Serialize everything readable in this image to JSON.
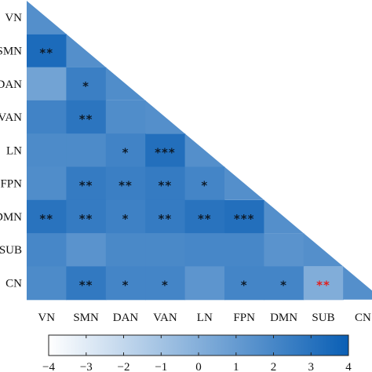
{
  "chart_data": {
    "type": "heatmap",
    "title": "",
    "xlabel": "",
    "ylabel": "",
    "layout": "lower-triangle",
    "labels": [
      "VN",
      "SMN",
      "DAN",
      "VAN",
      "LN",
      "FPN",
      "DMN",
      "SUB",
      "CN"
    ],
    "x_tick_labels": [
      "VN",
      "SMN",
      "DAN",
      "VAN",
      "LN",
      "FPN",
      "DMN",
      "SUB",
      "CN"
    ],
    "y_tick_labels": [
      "VN",
      "SMN",
      "DAN",
      "VAN",
      "LN",
      "FPN",
      "DMN",
      "SUB",
      "CN"
    ],
    "colorbar": {
      "range": [
        -4,
        4
      ],
      "ticks": [
        "−4",
        "−3",
        "−2",
        "−1",
        "0",
        "1",
        "2",
        "3",
        "4"
      ],
      "tick_values": [
        -4,
        -3,
        -2,
        -1,
        0,
        1,
        2,
        3,
        4
      ],
      "orientation": "horizontal",
      "placement": "bottom",
      "color_low": "#ffffff",
      "color_high": "#0a5fb5"
    },
    "cells": [
      {
        "row": 0,
        "col": 0,
        "value": 1.6,
        "sig": ""
      },
      {
        "row": 1,
        "col": 0,
        "value": 3.4,
        "sig": "**"
      },
      {
        "row": 1,
        "col": 1,
        "value": 1.6,
        "sig": ""
      },
      {
        "row": 2,
        "col": 0,
        "value": 0.6,
        "sig": ""
      },
      {
        "row": 2,
        "col": 1,
        "value": 2.4,
        "sig": "*"
      },
      {
        "row": 2,
        "col": 2,
        "value": 1.7,
        "sig": ""
      },
      {
        "row": 3,
        "col": 0,
        "value": 2.2,
        "sig": ""
      },
      {
        "row": 3,
        "col": 1,
        "value": 2.9,
        "sig": "**"
      },
      {
        "row": 3,
        "col": 2,
        "value": 1.7,
        "sig": ""
      },
      {
        "row": 3,
        "col": 3,
        "value": 1.6,
        "sig": ""
      },
      {
        "row": 4,
        "col": 0,
        "value": 1.8,
        "sig": ""
      },
      {
        "row": 4,
        "col": 1,
        "value": 1.8,
        "sig": ""
      },
      {
        "row": 4,
        "col": 2,
        "value": 2.2,
        "sig": "*"
      },
      {
        "row": 4,
        "col": 3,
        "value": 3.2,
        "sig": "***"
      },
      {
        "row": 4,
        "col": 4,
        "value": 1.6,
        "sig": ""
      },
      {
        "row": 5,
        "col": 0,
        "value": 1.7,
        "sig": ""
      },
      {
        "row": 5,
        "col": 1,
        "value": 2.6,
        "sig": "**"
      },
      {
        "row": 5,
        "col": 2,
        "value": 2.4,
        "sig": "**"
      },
      {
        "row": 5,
        "col": 3,
        "value": 2.6,
        "sig": "**"
      },
      {
        "row": 5,
        "col": 4,
        "value": 2.1,
        "sig": "*"
      },
      {
        "row": 5,
        "col": 5,
        "value": 1.6,
        "sig": ""
      },
      {
        "row": 6,
        "col": 0,
        "value": 3.0,
        "sig": "**"
      },
      {
        "row": 6,
        "col": 1,
        "value": 2.6,
        "sig": "**"
      },
      {
        "row": 6,
        "col": 2,
        "value": 2.3,
        "sig": "*"
      },
      {
        "row": 6,
        "col": 3,
        "value": 2.6,
        "sig": "**"
      },
      {
        "row": 6,
        "col": 4,
        "value": 3.0,
        "sig": "**"
      },
      {
        "row": 6,
        "col": 5,
        "value": 3.2,
        "sig": "***"
      },
      {
        "row": 6,
        "col": 6,
        "value": 1.6,
        "sig": ""
      },
      {
        "row": 7,
        "col": 0,
        "value": 2.0,
        "sig": ""
      },
      {
        "row": 7,
        "col": 1,
        "value": 1.4,
        "sig": ""
      },
      {
        "row": 7,
        "col": 2,
        "value": 1.9,
        "sig": ""
      },
      {
        "row": 7,
        "col": 3,
        "value": 1.9,
        "sig": ""
      },
      {
        "row": 7,
        "col": 4,
        "value": 2.0,
        "sig": ""
      },
      {
        "row": 7,
        "col": 5,
        "value": 2.0,
        "sig": ""
      },
      {
        "row": 7,
        "col": 6,
        "value": 1.4,
        "sig": ""
      },
      {
        "row": 7,
        "col": 7,
        "value": 1.6,
        "sig": ""
      },
      {
        "row": 8,
        "col": 0,
        "value": 1.8,
        "sig": ""
      },
      {
        "row": 8,
        "col": 1,
        "value": 2.7,
        "sig": "**"
      },
      {
        "row": 8,
        "col": 2,
        "value": 2.1,
        "sig": "*"
      },
      {
        "row": 8,
        "col": 3,
        "value": 2.1,
        "sig": "*"
      },
      {
        "row": 8,
        "col": 4,
        "value": 1.3,
        "sig": ""
      },
      {
        "row": 8,
        "col": 5,
        "value": 2.1,
        "sig": "*"
      },
      {
        "row": 8,
        "col": 6,
        "value": 2.1,
        "sig": "*"
      },
      {
        "row": 8,
        "col": 7,
        "value": 0.1,
        "sig": "**",
        "sig_color": "#e02020"
      },
      {
        "row": 8,
        "col": 8,
        "value": 1.6,
        "sig": ""
      }
    ]
  }
}
